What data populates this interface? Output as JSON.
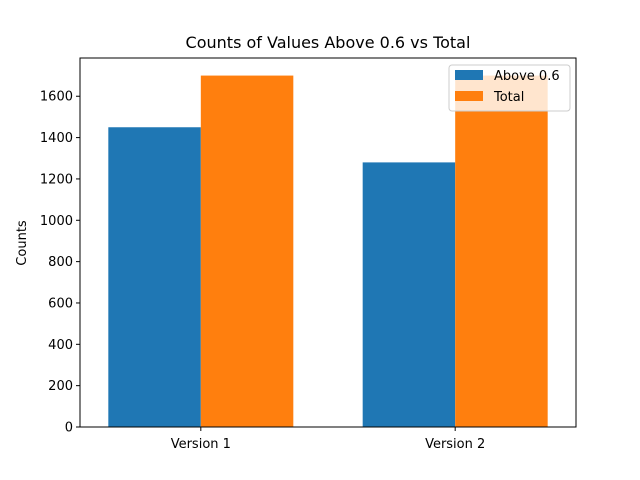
{
  "chart_data": {
    "type": "bar",
    "title": "Counts of Values Above 0.6 vs Total",
    "xlabel": "",
    "ylabel": "Counts",
    "categories": [
      "Version 1",
      "Version 2"
    ],
    "series": [
      {
        "name": "Above 0.6",
        "values": [
          1450,
          1280
        ],
        "color": "#1f77b4"
      },
      {
        "name": "Total",
        "values": [
          1700,
          1700
        ],
        "color": "#ff7f0e"
      }
    ],
    "ylim": [
      0,
      1785
    ],
    "yticks": [
      0,
      200,
      400,
      600,
      800,
      1000,
      1200,
      1400,
      1600
    ],
    "grid": false,
    "legend_position": "upper right"
  }
}
